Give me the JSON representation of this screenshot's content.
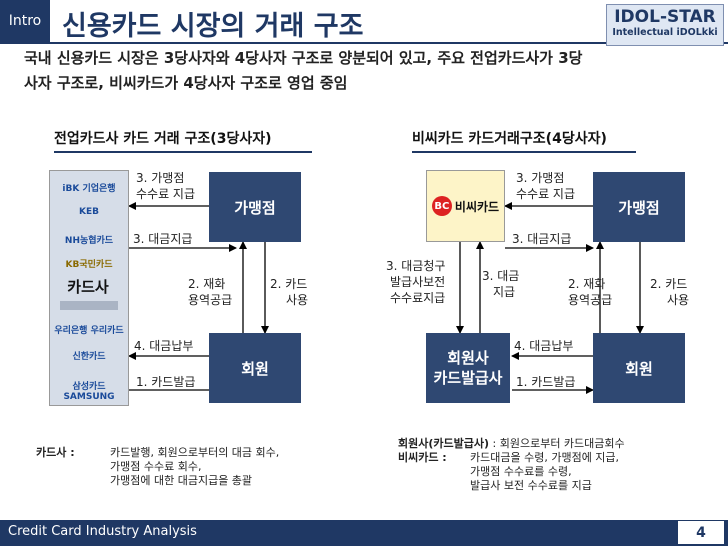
{
  "header": {
    "intro_tag": "Intro",
    "title": "신용카드 시장의 거래 구조",
    "logo_main": "IDOL-STAR",
    "logo_sub": "Intellectual iDOLkki"
  },
  "intro": {
    "line1": "국내 신용카드 시장은 3당사자와 4당사자 구조로 양분되어 있고, 주요 전업카드사가 3당",
    "line2": "사자 구조로, 비씨카드가 4당사자 구조로 영업 중임"
  },
  "left_diagram": {
    "heading": "전업카드사 카드 거래 구조(3당사자)",
    "issuer_logos": [
      "iBK 기업은행",
      "KEB",
      "NH농협카드",
      "KB국민카드",
      "",
      "",
      "우리은행 우리카드",
      "신한카드",
      "삼성카드  SAMSUNG"
    ],
    "issuer_label": "카드사",
    "merchant_box": "가맹점",
    "member_box": "회원",
    "step3_fee_line1": "3. 가맹점",
    "step3_fee_line2": "수수료 지급",
    "step3_pay": "3. 대금지급",
    "step2_line1": "2. 재화",
    "step2_line2": "용역공급",
    "step2_card_line1": "2. 카드",
    "step2_card_line2": "사용",
    "step4": "4. 대금납부",
    "step1": "1. 카드발급"
  },
  "right_diagram": {
    "heading": "비씨카드 카드거래구조(4당사자)",
    "bc_logo_text": "비씨카드",
    "bc_logo_mark": "BC",
    "merchant_box": "가맹점",
    "member_issuer_line1": "회원사",
    "member_issuer_line2": "카드발급사",
    "member_box": "회원",
    "step3_fee_line1": "3. 가맹점",
    "step3_fee_line2": "수수료 지급",
    "step3_pay": "3. 대금지급",
    "step3_claim_line1": "3.  대금청구",
    "step3_claim_line2": "발급사보전",
    "step3_claim_line3": "수수료지급",
    "step3_pay2_line1": "3. 대금",
    "step3_pay2_line2": "지급",
    "step2_line1": "2. 재화",
    "step2_line2": "용역공급",
    "step2_card_line1": "2. 카드",
    "step2_card_line2": "사용",
    "step4": "4. 대금납부",
    "step1": "1. 카드발급"
  },
  "notes": {
    "left_term": "카드사 :",
    "left_lines": [
      "카드발행, 회원으로부터의 대금 회수,",
      "가맹점 수수료 회수,",
      "가맹점에 대한 대금지급을 총괄"
    ],
    "right_term1": "회원사(카드발급사)",
    "right_desc1": " : 회원으로부터 카드대금회수",
    "right_term2": "비씨카드 :",
    "right_lines": [
      "카드대금을 수령, 가맹점에 지급,",
      "가맹점 수수료를 수령,",
      "발급사 보전 수수료를 지급"
    ]
  },
  "footer": {
    "text": "Credit Card Industry Analysis",
    "page": "4"
  },
  "colors": {
    "navy": "#1f3864",
    "box_navy": "#2f4872",
    "bc_box": "#fdf4c8",
    "issuer_panel": "#d6dde8"
  }
}
